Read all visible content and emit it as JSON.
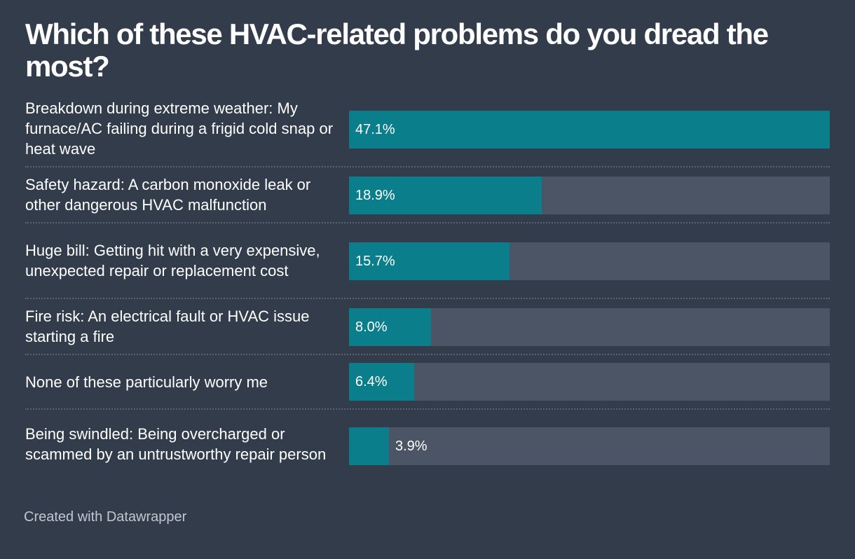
{
  "title": "Which of these HVAC-related problems do you dread the most?",
  "footer": "Created with Datawrapper",
  "colors": {
    "background": "#333c4b",
    "bar": "#0a7e8a",
    "track": "#4c5566"
  },
  "chart_data": {
    "type": "bar",
    "orientation": "horizontal",
    "title": "Which of these HVAC-related problems do you dread the most?",
    "xlim": [
      0,
      47.1
    ],
    "categories": [
      "Breakdown during extreme weather: My furnace/AC failing during a frigid cold snap or heat wave",
      "Safety hazard: A carbon monoxide leak or other dangerous HVAC malfunction",
      "Huge bill: Getting hit with a very expensive, unexpected repair or replacement cost",
      "Fire risk: An electrical fault or HVAC issue starting a fire",
      "None of these particularly worry me",
      "Being swindled: Being overcharged or scammed by an untrustworthy repair person"
    ],
    "values": [
      47.1,
      18.9,
      15.7,
      8.0,
      6.4,
      3.9
    ],
    "value_labels": [
      "47.1%",
      "18.9%",
      "15.7%",
      "8.0%",
      "6.4%",
      "3.9%"
    ]
  }
}
